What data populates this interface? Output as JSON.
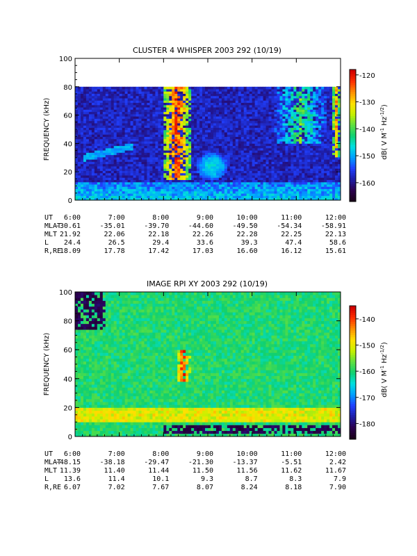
{
  "colors": {
    "colormap": [
      "#1a001a",
      "#2b0050",
      "#1e1ea8",
      "#2040ff",
      "#00a0ff",
      "#00e0e0",
      "#10d070",
      "#60e040",
      "#c8f000",
      "#ffe000",
      "#ff9000",
      "#ff3000",
      "#d00000"
    ],
    "background": "#ffffff",
    "axis": "#000000"
  },
  "chart_data": [
    {
      "type": "heatmap",
      "title": "CLUSTER 4 WHISPER 2003 292 (10/19)",
      "ylabel": "FREQUENCY (kHz)",
      "ylim": [
        0,
        100
      ],
      "yticks": [
        0,
        20,
        40,
        60,
        80,
        100
      ],
      "data_max_frequency": 80,
      "colorbar": {
        "label": "dB( V M⁻¹ Hz⁻¹ᐟ²)",
        "label_main": "dB( V M",
        "label_sup1": "-1",
        "label_mid": " Hz",
        "label_sup2": "-1/2",
        "label_end": ")",
        "range": [
          -167,
          -118
        ],
        "ticks": [
          -120,
          -130,
          -140,
          -150,
          -160
        ]
      },
      "x_ticks": [
        "6:00",
        "7:00",
        "8:00",
        "9:00",
        "10:00",
        "11:00",
        "12:00"
      ],
      "ephemeris": [
        {
          "label": "UT",
          "values": [
            "6:00",
            "7:00",
            "8:00",
            "9:00",
            "10:00",
            "11:00",
            "12:00"
          ]
        },
        {
          "label": "MLAT",
          "values": [
            "-30.61",
            "-35.01",
            "-39.70",
            "-44.60",
            "-49.50",
            "-54.34",
            "-58.91"
          ]
        },
        {
          "label": "MLT",
          "values": [
            "21.92",
            "22.06",
            "22.18",
            "22.26",
            "22.28",
            "22.25",
            "22.13"
          ]
        },
        {
          "label": "L",
          "values": [
            "24.4",
            "26.5",
            "29.4",
            "33.6",
            "39.3",
            "47.4",
            "58.6"
          ]
        },
        {
          "label": "R,RE",
          "values": [
            "18.09",
            "17.78",
            "17.42",
            "17.03",
            "16.60",
            "16.12",
            "15.61"
          ]
        }
      ],
      "features": [
        {
          "type": "background",
          "level": -158
        },
        {
          "type": "low_band",
          "f_min": 0,
          "f_max": 12,
          "level": -148
        },
        {
          "type": "burst",
          "t_start": 8.0,
          "t_end": 8.6,
          "f_min": 15,
          "f_max": 80,
          "level": -122
        },
        {
          "type": "blob",
          "t": 9.1,
          "f": 24,
          "dt": 0.35,
          "df": 10,
          "level": -147
        },
        {
          "type": "streak",
          "t_start": 6.2,
          "t_end": 7.3,
          "f_start": 30,
          "f_end": 38,
          "level": -150
        },
        {
          "type": "burst",
          "t_start": 10.5,
          "t_end": 11.7,
          "f_min": 40,
          "f_max": 80,
          "level": -140
        },
        {
          "type": "burst",
          "t_start": 11.8,
          "t_end": 12.0,
          "f_min": 30,
          "f_max": 80,
          "level": -128
        }
      ]
    },
    {
      "type": "heatmap",
      "title": "IMAGE RPI XY 2003 292 (10/19)",
      "ylabel": "FREQUENCY (kHz)",
      "ylim": [
        0,
        100
      ],
      "yticks": [
        0,
        20,
        40,
        60,
        80,
        100
      ],
      "data_max_frequency": 100,
      "colorbar": {
        "label": "dB( V M⁻¹ Hz⁻¹ᐟ²)",
        "label_main": "dB( V M",
        "label_sup1": "-1",
        "label_mid": " Hz",
        "label_sup2": "-1/2",
        "label_end": ")",
        "range": [
          -186,
          -135
        ],
        "ticks": [
          -140,
          -150,
          -160,
          -170,
          -180
        ]
      },
      "x_ticks": [
        "6:00",
        "7:00",
        "8:00",
        "9:00",
        "10:00",
        "11:00",
        "12:00"
      ],
      "ephemeris": [
        {
          "label": "UT",
          "values": [
            "6:00",
            "7:00",
            "8:00",
            "9:00",
            "10:00",
            "11:00",
            "12:00"
          ]
        },
        {
          "label": "MLAT",
          "values": [
            "-48.15",
            "-38.18",
            "-29.47",
            "-21.30",
            "-13.37",
            "-5.51",
            "2.42"
          ]
        },
        {
          "label": "MLT",
          "values": [
            "11.39",
            "11.40",
            "11.44",
            "11.50",
            "11.56",
            "11.62",
            "11.67"
          ]
        },
        {
          "label": "L",
          "values": [
            "13.6",
            "11.4",
            "10.1",
            "9.3",
            "8.7",
            "8.3",
            "7.9"
          ]
        },
        {
          "label": "R,RE",
          "values": [
            "6.07",
            "7.02",
            "7.67",
            "8.07",
            "8.24",
            "8.18",
            "7.90"
          ]
        }
      ],
      "features": [
        {
          "type": "background",
          "level": -160
        },
        {
          "type": "dark_corner",
          "t_start": 6.0,
          "t_end": 6.7,
          "f_min": 75,
          "f_max": 100,
          "level": -182
        },
        {
          "type": "dark_band",
          "t_start": 8.0,
          "t_end": 12.0,
          "f_min": 2,
          "f_max": 8,
          "level": -182
        },
        {
          "type": "bright_band",
          "f_min": 10,
          "f_max": 20,
          "level": -150
        },
        {
          "type": "burst",
          "t_start": 8.3,
          "t_end": 8.6,
          "f_min": 38,
          "f_max": 60,
          "level": -138
        }
      ]
    }
  ]
}
